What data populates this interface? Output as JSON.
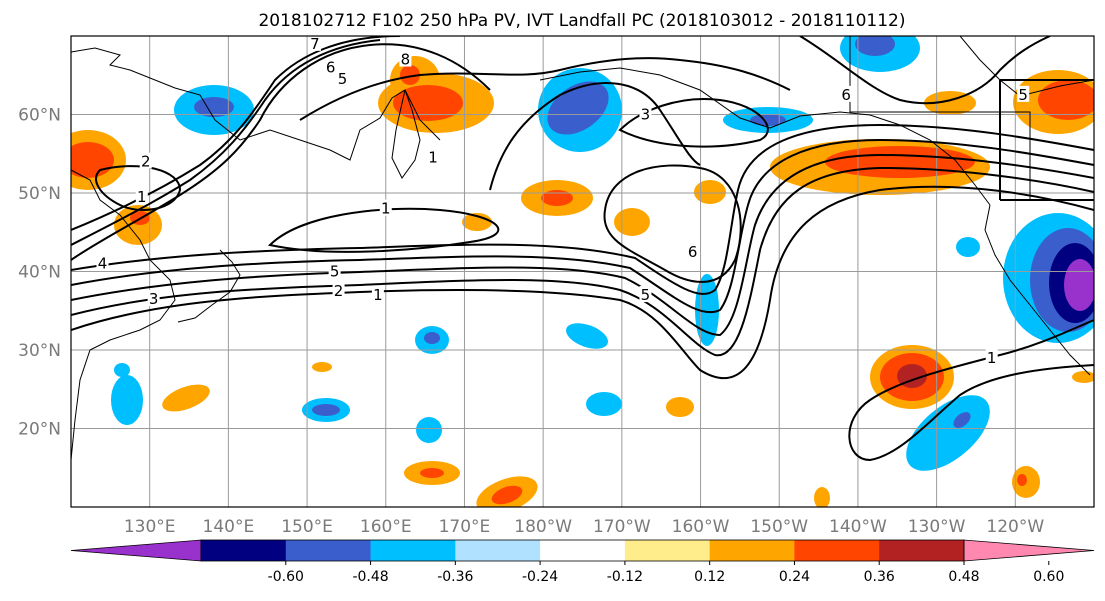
{
  "title": "2018102712 F102 250 hPa PV, IVT Landfall PC (2018103012 - 2018110112)",
  "map": {
    "lon_range": [
      120,
      250
    ],
    "lat_range": [
      10,
      70
    ],
    "lon_ticks": [
      {
        "lon": 130,
        "label": "130°E"
      },
      {
        "lon": 140,
        "label": "140°E"
      },
      {
        "lon": 150,
        "label": "150°E"
      },
      {
        "lon": 160,
        "label": "160°E"
      },
      {
        "lon": 170,
        "label": "170°E"
      },
      {
        "lon": 180,
        "label": "180°W"
      },
      {
        "lon": 190,
        "label": "170°W"
      },
      {
        "lon": 200,
        "label": "160°W"
      },
      {
        "lon": 210,
        "label": "150°W"
      },
      {
        "lon": 220,
        "label": "140°W"
      },
      {
        "lon": 230,
        "label": "130°W"
      },
      {
        "lon": 240,
        "label": "120°W"
      }
    ],
    "lat_ticks": [
      {
        "lat": 20,
        "label": "20°N"
      },
      {
        "lat": 30,
        "label": "30°N"
      },
      {
        "lat": 40,
        "label": "40°N"
      },
      {
        "lat": 50,
        "label": "50°N"
      },
      {
        "lat": 60,
        "label": "60°N"
      }
    ],
    "grid": true,
    "contour_labels": [
      {
        "text": "7",
        "lon": 151,
        "lat": 69
      },
      {
        "text": "6",
        "lon": 153,
        "lat": 66
      },
      {
        "text": "5",
        "lon": 154.5,
        "lat": 64.5
      },
      {
        "text": "8",
        "lon": 162.5,
        "lat": 67
      },
      {
        "text": "2",
        "lon": 129.5,
        "lat": 54
      },
      {
        "text": "1",
        "lon": 129,
        "lat": 49.5
      },
      {
        "text": "4",
        "lon": 124,
        "lat": 41
      },
      {
        "text": "3",
        "lon": 130.5,
        "lat": 36.5
      },
      {
        "text": "5",
        "lon": 153.5,
        "lat": 40
      },
      {
        "text": "2",
        "lon": 154,
        "lat": 37.5
      },
      {
        "text": "1",
        "lon": 159,
        "lat": 37
      },
      {
        "text": "1",
        "lon": 160,
        "lat": 48
      },
      {
        "text": "1",
        "lon": 166,
        "lat": 54.5
      },
      {
        "text": "3",
        "lon": 193,
        "lat": 60
      },
      {
        "text": "5",
        "lon": 193,
        "lat": 37
      },
      {
        "text": "6",
        "lon": 199,
        "lat": 42.5
      },
      {
        "text": "6",
        "lon": 218.5,
        "lat": 62.5
      },
      {
        "text": "5",
        "lon": 241,
        "lat": 62.5
      },
      {
        "text": "1",
        "lon": 237,
        "lat": 29
      }
    ]
  },
  "chart_data": {
    "type": "heatmap",
    "fields": [
      "250 hPa PV (black contours)",
      "IVT Landfall PC (shaded)"
    ],
    "colorbar": {
      "ticks": [
        "-0.60",
        "-0.48",
        "-0.36",
        "-0.24",
        "-0.12",
        "0.12",
        "0.24",
        "0.36",
        "0.48",
        "0.60"
      ],
      "bounds": [
        -0.6,
        -0.48,
        -0.36,
        -0.24,
        -0.12,
        0.12,
        0.24,
        0.36,
        0.48,
        0.6
      ],
      "colors": [
        "#9932cc",
        "#000080",
        "#3a5fcd",
        "#00bfff",
        "#b0e2ff",
        "#ffffff",
        "#ffec8b",
        "#ffa500",
        "#ff4500",
        "#b22222",
        "#ff88b0"
      ],
      "extend": "both"
    }
  }
}
